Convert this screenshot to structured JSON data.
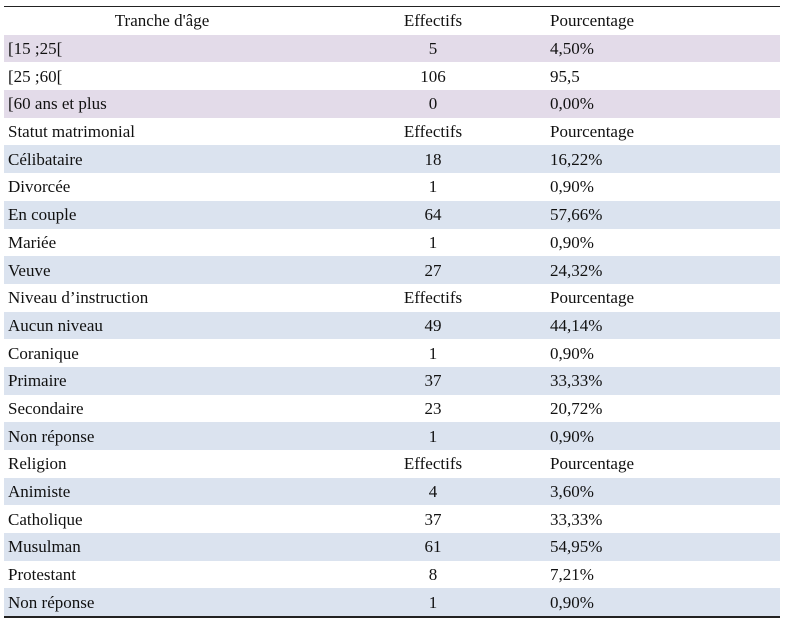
{
  "sections": [
    {
      "header": {
        "label": "Tranche d'âge",
        "count_label": "Effectifs",
        "pct_label": "Pourcentage"
      },
      "rows": [
        {
          "label": "[15 ;25[",
          "count": "5",
          "pct": "4,50%"
        },
        {
          "label": "[25 ;60[",
          "count": "106",
          "pct": "95,5"
        },
        {
          "label": "[60 ans et plus",
          "count": "0",
          "pct": "0,00%"
        }
      ]
    },
    {
      "header": {
        "label": "Statut matrimonial",
        "count_label": "Effectifs",
        "pct_label": "Pourcentage"
      },
      "rows": [
        {
          "label": "Célibataire",
          "count": "18",
          "pct": "16,22%"
        },
        {
          "label": "Divorcée",
          "count": "1",
          "pct": "0,90%"
        },
        {
          "label": "En couple",
          "count": "64",
          "pct": "57,66%"
        },
        {
          "label": "Mariée",
          "count": "1",
          "pct": "0,90%"
        },
        {
          "label": "Veuve",
          "count": "27",
          "pct": "24,32%"
        }
      ]
    },
    {
      "header": {
        "label": "Niveau d’instruction",
        "count_label": "Effectifs",
        "pct_label": "Pourcentage"
      },
      "rows": [
        {
          "label": "Aucun niveau",
          "count": "49",
          "pct": "44,14%"
        },
        {
          "label": "Coranique",
          "count": "1",
          "pct": "0,90%"
        },
        {
          "label": "Primaire",
          "count": "37",
          "pct": "33,33%"
        },
        {
          "label": "Secondaire",
          "count": "23",
          "pct": "20,72%"
        },
        {
          "label": "Non réponse",
          "count": "1",
          "pct": "0,90%"
        }
      ]
    },
    {
      "header": {
        "label": "Religion",
        "count_label": "Effectifs",
        "pct_label": "Pourcentage"
      },
      "rows": [
        {
          "label": "Animiste",
          "count": "4",
          "pct": "3,60%"
        },
        {
          "label": "Catholique",
          "count": "37",
          "pct": "33,33%"
        },
        {
          "label": "Musulman",
          "count": "61",
          "pct": "54,95%"
        },
        {
          "label": "Protestant",
          "count": "8",
          "pct": "7,21%"
        },
        {
          "label": "Non réponse",
          "count": "1",
          "pct": "0,90%"
        }
      ]
    }
  ],
  "colors": {
    "age_row_shade": "#e3dbe9",
    "row_shade": "#dbe3ef",
    "rule": "#222222"
  }
}
